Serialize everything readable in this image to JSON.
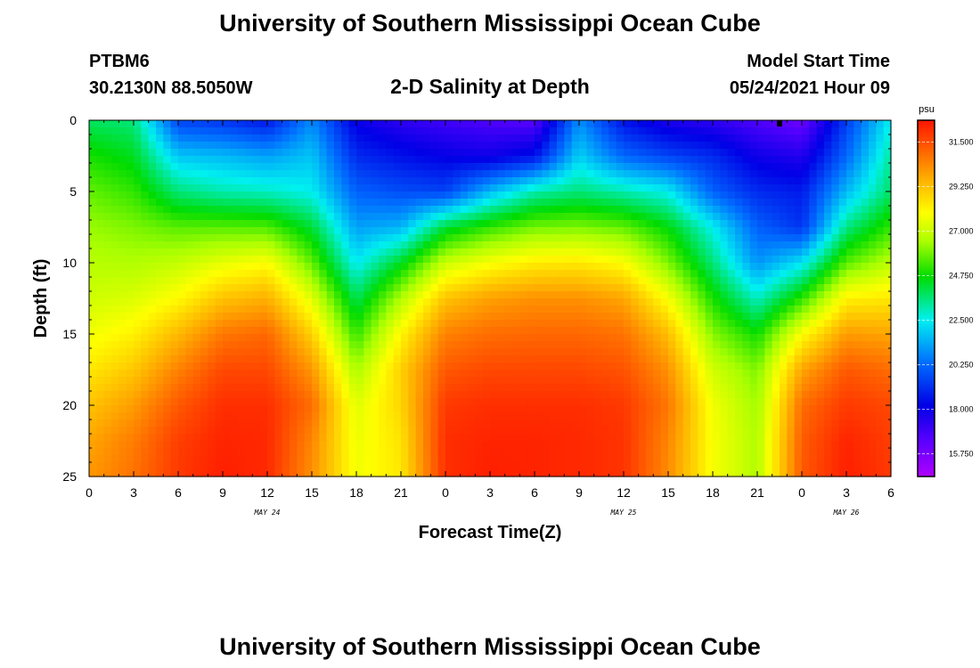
{
  "header": {
    "title": "University of Southern Mississippi Ocean Cube",
    "station": "PTBM6",
    "coords": "30.2130N  88.5050W",
    "plot_title": "2-D Salinity at Depth",
    "model_start_label": "Model Start Time",
    "model_start_value": "05/24/2021 Hour 09"
  },
  "footer": {
    "title": "University of Southern Mississippi Ocean Cube"
  },
  "chart_data": {
    "type": "heatmap",
    "title": "2-D Salinity at Depth",
    "xlabel": "Forecast Time(Z)",
    "ylabel": "Depth (ft)",
    "x_hours_range": [
      0,
      54
    ],
    "x_tick_labels": [
      "0",
      "3",
      "6",
      "9",
      "12",
      "15",
      "18",
      "21",
      "0",
      "3",
      "6",
      "9",
      "12",
      "15",
      "18",
      "21",
      "0",
      "3",
      "6"
    ],
    "date_labels": [
      {
        "label": "MAY 24",
        "hour": 12
      },
      {
        "label": "MAY 25",
        "hour": 36
      },
      {
        "label": "MAY 26",
        "hour": 51
      }
    ],
    "y_range": [
      0,
      25
    ],
    "y_ticks": [
      0,
      5,
      10,
      15,
      20,
      25
    ],
    "y_tick_labels": [
      "0",
      "5",
      "10",
      "15",
      "20",
      "25"
    ],
    "colorbar": {
      "unit": "psu",
      "min": 14.6,
      "max": 32.6,
      "tick_values": [
        15.75,
        18.0,
        20.25,
        22.5,
        24.75,
        27.0,
        29.25,
        31.5
      ],
      "tick_labels": [
        "15.750",
        "18.000",
        "20.250",
        "22.500",
        "24.750",
        "27.000",
        "29.250",
        "31.500"
      ]
    },
    "value_at_depth_range": "approx 15.5 psu (surface low) to 32.5 psu (bottom high)",
    "time_grid_hours": [
      0,
      3,
      6,
      9,
      12,
      15,
      18,
      21,
      24,
      27,
      30,
      33,
      36,
      39,
      42,
      45,
      48,
      51,
      54
    ],
    "depth_grid_ft": [
      0,
      2.5,
      5,
      7.5,
      10,
      12.5,
      15,
      17.5,
      20,
      22.5,
      25
    ],
    "salinity_psu": [
      [
        23.8,
        23.6,
        19.5,
        19.2,
        18.6,
        20.8,
        18.0,
        17.3,
        16.9,
        16.6,
        16.4,
        20.9,
        18.5,
        17.6,
        17.3,
        16.6,
        16.0,
        19.4,
        22.5
      ],
      [
        24.9,
        24.4,
        21.8,
        21.6,
        21.2,
        21.8,
        19.0,
        18.5,
        18.1,
        17.9,
        18.5,
        22.0,
        20.2,
        19.5,
        19.0,
        17.9,
        17.5,
        20.2,
        23.3
      ],
      [
        25.7,
        25.2,
        23.6,
        23.1,
        22.9,
        22.5,
        20.1,
        19.7,
        19.5,
        21.6,
        23.1,
        23.6,
        23.1,
        22.5,
        20.1,
        19.0,
        18.7,
        21.6,
        23.8
      ],
      [
        26.3,
        26.0,
        25.6,
        25.6,
        25.5,
        24.2,
        21.2,
        21.5,
        24.2,
        25.2,
        25.9,
        26.0,
        25.7,
        24.6,
        22.5,
        20.1,
        19.2,
        23.5,
        25.2
      ],
      [
        26.7,
        26.6,
        26.9,
        27.5,
        27.9,
        25.7,
        22.4,
        24.4,
        27.0,
        27.8,
        28.3,
        28.4,
        27.9,
        26.0,
        23.6,
        21.0,
        22.3,
        25.6,
        26.8
      ],
      [
        27.1,
        27.3,
        28.0,
        29.2,
        29.6,
        27.4,
        23.9,
        26.6,
        29.2,
        29.9,
        30.2,
        30.2,
        29.8,
        27.8,
        24.9,
        22.9,
        25.1,
        28.2,
        28.4
      ],
      [
        27.7,
        28.2,
        29.4,
        30.7,
        31.0,
        28.9,
        25.2,
        28.1,
        30.5,
        30.9,
        31.0,
        31.0,
        30.8,
        29.3,
        26.1,
        24.8,
        27.9,
        30.0,
        29.8
      ],
      [
        28.4,
        29.1,
        30.5,
        31.6,
        31.6,
        30.1,
        26.5,
        28.9,
        31.3,
        31.6,
        31.6,
        31.6,
        31.4,
        30.2,
        27.1,
        26.0,
        29.8,
        31.3,
        30.9
      ],
      [
        29.2,
        30.0,
        31.3,
        32.1,
        32.1,
        30.9,
        27.4,
        28.8,
        31.9,
        32.1,
        32.1,
        32.1,
        31.9,
        30.7,
        27.7,
        26.4,
        30.9,
        31.9,
        31.6
      ],
      [
        29.8,
        30.6,
        31.8,
        32.3,
        32.2,
        30.4,
        27.6,
        28.5,
        32.1,
        32.3,
        32.3,
        32.2,
        32.0,
        30.4,
        27.8,
        26.6,
        31.2,
        32.3,
        31.8
      ],
      [
        30.1,
        30.8,
        31.9,
        32.4,
        32.2,
        30.2,
        27.7,
        28.4,
        32.1,
        32.4,
        32.3,
        32.2,
        32.0,
        30.3,
        27.8,
        26.6,
        31.3,
        32.4,
        31.9
      ]
    ]
  }
}
